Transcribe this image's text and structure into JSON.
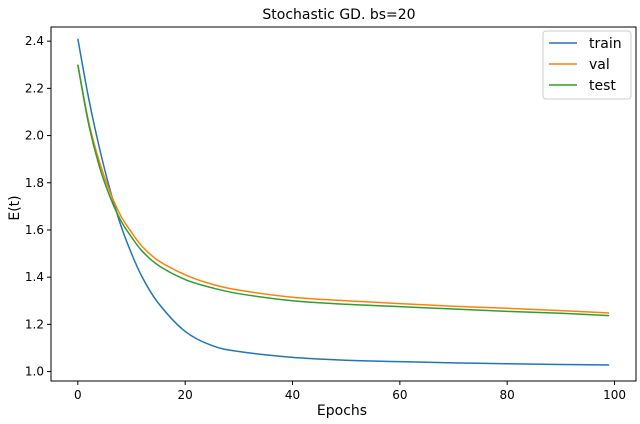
{
  "chart_data": {
    "type": "line",
    "title": "Stochastic GD. bs=20",
    "xlabel": "Epochs",
    "ylabel": "E(t)",
    "xlim": [
      -5,
      104
    ],
    "ylim": [
      0.96,
      2.46
    ],
    "xticks": [
      0,
      20,
      40,
      60,
      80,
      100
    ],
    "yticks": [
      1.0,
      1.2,
      1.4,
      1.6,
      1.8,
      2.0,
      2.2,
      2.4
    ],
    "grid": false,
    "legend_position": "top-right",
    "x": [
      0,
      2,
      4,
      6,
      8,
      10,
      12,
      15,
      20,
      25,
      30,
      40,
      50,
      60,
      70,
      80,
      90,
      99
    ],
    "series": [
      {
        "name": "train",
        "color": "#1f77b4",
        "values": [
          2.41,
          2.16,
          1.95,
          1.77,
          1.62,
          1.5,
          1.4,
          1.29,
          1.17,
          1.11,
          1.085,
          1.06,
          1.048,
          1.042,
          1.037,
          1.033,
          1.03,
          1.028
        ]
      },
      {
        "name": "val",
        "color": "#ff7f0e",
        "values": [
          2.3,
          2.06,
          1.89,
          1.76,
          1.66,
          1.59,
          1.53,
          1.47,
          1.41,
          1.37,
          1.345,
          1.315,
          1.3,
          1.288,
          1.277,
          1.268,
          1.258,
          1.248
        ]
      },
      {
        "name": "test",
        "color": "#2ca02c",
        "values": [
          2.3,
          2.05,
          1.87,
          1.74,
          1.64,
          1.57,
          1.51,
          1.45,
          1.39,
          1.355,
          1.33,
          1.3,
          1.285,
          1.275,
          1.265,
          1.255,
          1.247,
          1.237
        ]
      }
    ]
  }
}
